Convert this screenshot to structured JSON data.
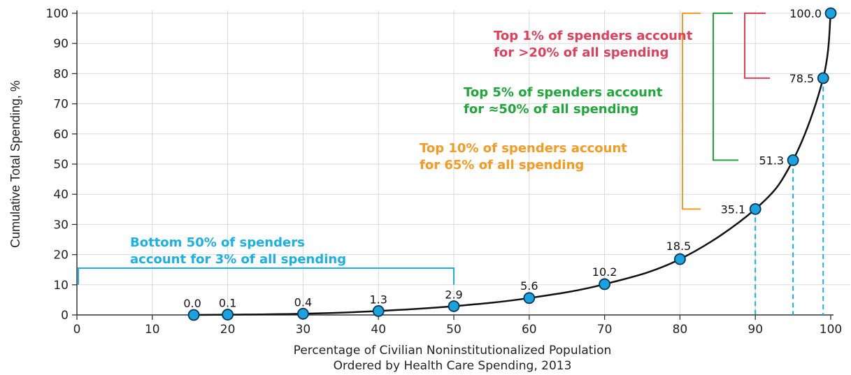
{
  "chart_data": {
    "type": "line",
    "title": "",
    "xlabel": [
      "Percentage of Civilian Noninstitutionalized Population",
      "Ordered by Health Care Spending, 2013"
    ],
    "ylabel": "Cumulative Total Spending, %",
    "xlim": [
      0,
      100
    ],
    "ylim": [
      0,
      100
    ],
    "x_ticks": [
      "0",
      "10",
      "20",
      "30",
      "40",
      "50",
      "60",
      "70",
      "80",
      "90",
      "100"
    ],
    "y_ticks": [
      "0",
      "10",
      "20",
      "30",
      "40",
      "50",
      "60",
      "70",
      "80",
      "90",
      "100"
    ],
    "grid": true,
    "series": [
      {
        "x": [
          15.5,
          20,
          30,
          40,
          50,
          60,
          70,
          80,
          90,
          95,
          99,
          100
        ],
        "y": [
          0.0,
          0.1,
          0.4,
          1.3,
          2.9,
          5.6,
          10.2,
          18.5,
          35.1,
          51.3,
          78.5,
          100.0
        ],
        "labels": [
          "0.0",
          "0.1",
          "0.4",
          "1.3",
          "2.9",
          "5.6",
          "10.2",
          "18.5",
          "35.1",
          "51.3",
          "78.5",
          "100.0"
        ]
      }
    ],
    "annotations": {
      "bottom50": [
        "Bottom 50% of spenders",
        "account for 3% of all spending"
      ],
      "top10": [
        "Top 10% of spenders account",
        "for 65% of all spending"
      ],
      "top5": [
        "Top 5% of spenders account",
        "for ≈50% of all spending"
      ],
      "top1": [
        "Top 1% of spenders account",
        "for >20% of all spending"
      ]
    },
    "colors": {
      "line": "#111111",
      "marker_fill": "#1aa3e0",
      "marker_stroke": "#0b3550",
      "grid": "#d9d9d9",
      "bottom50": "#1ab0e6",
      "top10": "#f59a23",
      "top5": "#1fa83a",
      "top1": "#e0405a"
    }
  }
}
